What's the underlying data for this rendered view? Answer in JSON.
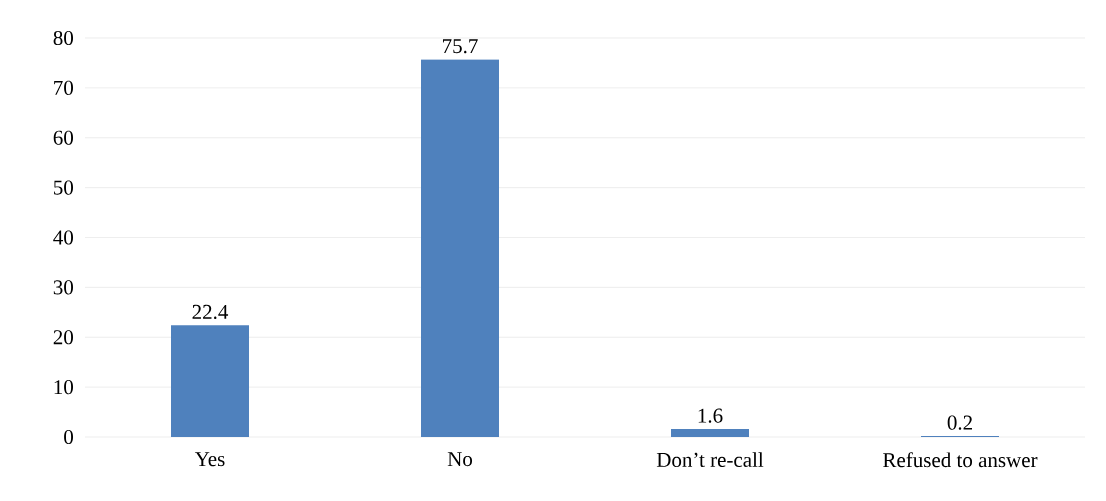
{
  "chart_data": {
    "type": "bar",
    "categories": [
      "Yes",
      "No",
      "Don’t re-call",
      "Refused to answer"
    ],
    "values": [
      22.4,
      75.7,
      1.6,
      0.2
    ],
    "color": "#4f81bd",
    "ylim": [
      0,
      80
    ],
    "yticks": [
      0,
      10,
      20,
      30,
      40,
      50,
      60,
      70,
      80
    ],
    "grid": "y",
    "data_labels": true
  }
}
